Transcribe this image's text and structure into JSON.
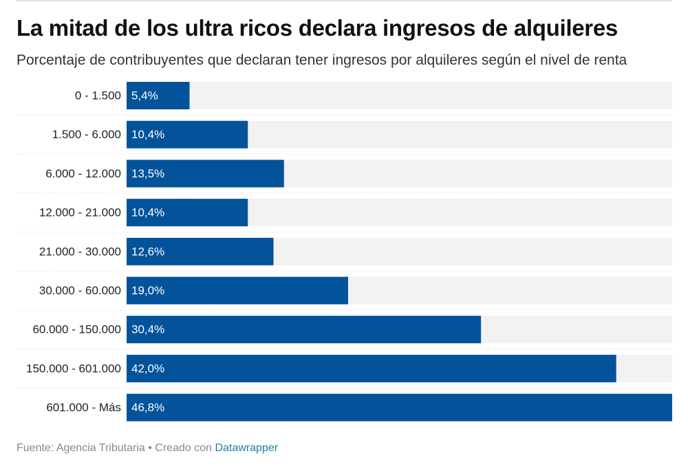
{
  "header": {
    "title": "La mitad de los ultra ricos declara ingresos de alquileres",
    "subtitle": "Porcentaje de contribuyentes que declaran tener ingresos por alquileres según el nivel de renta"
  },
  "footer": {
    "source": "Fuente: Agencia Tributaria",
    "separator": " • ",
    "created_with": "Creado con ",
    "tool": "Datawrapper"
  },
  "colors": {
    "bar": "#03539b",
    "track": "#f2f2f2",
    "divider": "#dcdcdc"
  },
  "chart_data": {
    "type": "bar",
    "orientation": "horizontal",
    "title": "La mitad de los ultra ricos declara ingresos de alquileres",
    "subtitle": "Porcentaje de contribuyentes que declaran tener ingresos por alquileres según el nivel de renta",
    "xlabel": "",
    "ylabel": "",
    "xlim": [
      0,
      46.8
    ],
    "unit": "%",
    "categories": [
      "0 - 1.500",
      "1.500 - 6.000",
      "6.000 - 12.000",
      "12.000 - 21.000",
      "21.000 - 30.000",
      "30.000 - 60.000",
      "60.000 - 150.000",
      "150.000 - 601.000",
      "601.000 - Más"
    ],
    "values": [
      5.4,
      10.4,
      13.5,
      10.4,
      12.6,
      19.0,
      30.4,
      42.0,
      46.8
    ],
    "value_labels": [
      "5,4%",
      "10,4%",
      "13,5%",
      "10,4%",
      "12,6%",
      "19,0%",
      "30,4%",
      "42,0%",
      "46,8%"
    ]
  }
}
